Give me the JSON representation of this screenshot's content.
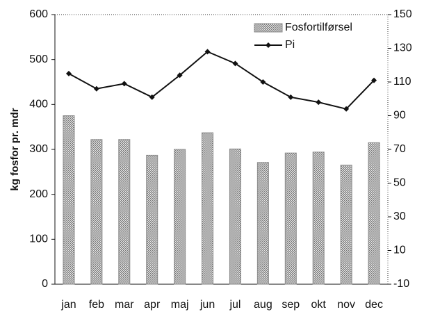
{
  "chart_data": {
    "type": "bar",
    "y_label": "kg fosfor pr. mdr",
    "categories": [
      "jan",
      "feb",
      "mar",
      "apr",
      "maj",
      "jun",
      "jul",
      "aug",
      "sep",
      "okt",
      "nov",
      "dec"
    ],
    "series": [
      {
        "name": "Fosfortilførsel",
        "type": "bar",
        "color": "#8a8a8a",
        "values": [
          375,
          322,
          322,
          287,
          300,
          337,
          301,
          271,
          292,
          294,
          265,
          315
        ]
      },
      {
        "name": "Pi",
        "type": "line",
        "axis": "y2",
        "color": "#111111",
        "values": [
          115,
          106,
          109,
          101,
          114,
          128,
          121,
          110,
          101,
          98,
          94,
          111
        ]
      }
    ],
    "ylim": [
      0,
      600
    ],
    "yticks": [
      0,
      100,
      200,
      300,
      400,
      500,
      600
    ],
    "y2lim": [
      -10,
      150
    ],
    "y2ticks": [
      -10,
      10,
      30,
      50,
      70,
      90,
      110,
      130,
      150
    ],
    "legend": "upper-right"
  }
}
